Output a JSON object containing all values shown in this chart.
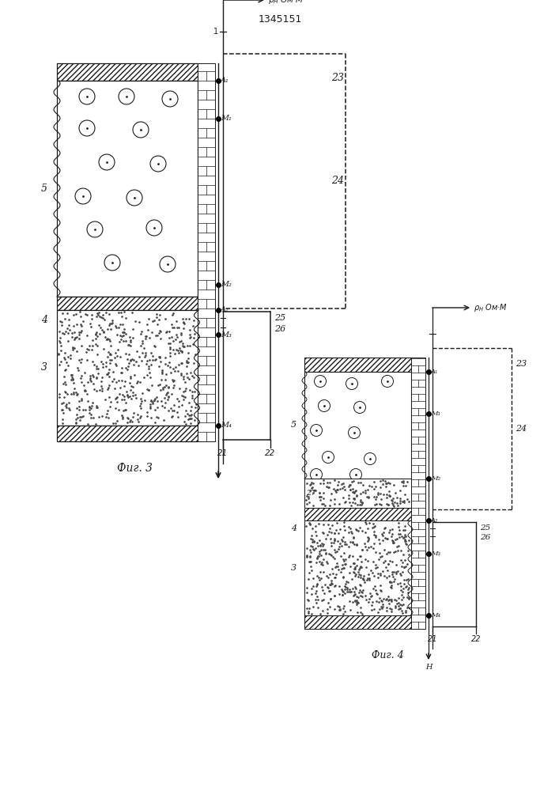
{
  "title": "1345151",
  "fig3_label": "Фиг. 3",
  "fig4_label": "Фиг. 4",
  "bg_color": "#ffffff",
  "line_color": "#1a1a1a"
}
